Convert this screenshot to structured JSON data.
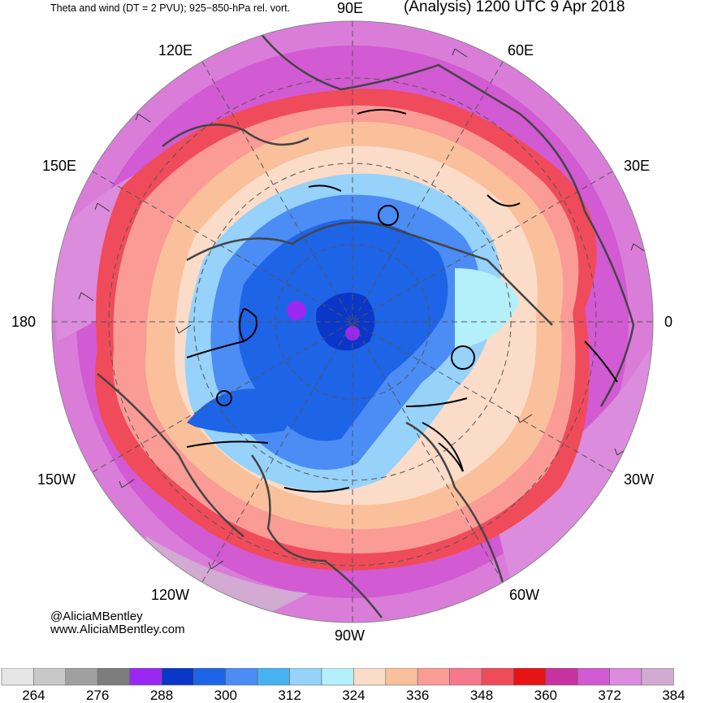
{
  "header": {
    "title_left": "Theta and wind (DT = 2 PVU); 925−850-hPa rel. vort.",
    "title_right": "(Analysis) 1200 UTC 9 Apr 2018"
  },
  "longitude_labels": {
    "lon_90e": "90E",
    "lon_60e": "60E",
    "lon_120e": "120E",
    "lon_30e": "30E",
    "lon_150e": "150E",
    "lon_180": "180",
    "lon_0": "0",
    "lon_150w": "150W",
    "lon_30w": "30W",
    "lon_120w": "120W",
    "lon_60w": "60W",
    "lon_90w": "90W"
  },
  "credit": {
    "handle": "@AliciaMBentley",
    "website": "www.AliciaMBentley.com"
  },
  "colorbar": {
    "colors": [
      "#e6e6e6",
      "#c8c8c8",
      "#a0a0a0",
      "#7d7d7d",
      "#9b28f0",
      "#0a37c8",
      "#1e64e6",
      "#4b8cf5",
      "#46b4f0",
      "#96d2fa",
      "#b4f0fa",
      "#fadcc8",
      "#fac09b",
      "#fa9b96",
      "#f5788c",
      "#f04b5a",
      "#e61414",
      "#c832a0",
      "#d25ad2",
      "#dc8cdc",
      "#d2aad2"
    ],
    "labels": [
      "264",
      "276",
      "288",
      "300",
      "312",
      "324",
      "336",
      "348",
      "360",
      "372",
      "384"
    ]
  },
  "map": {
    "projection": "north-polar-stereographic",
    "contours": "925-850-hPa relative vorticity (black)",
    "fill": "potential temperature on DT",
    "wind": "barbs"
  }
}
